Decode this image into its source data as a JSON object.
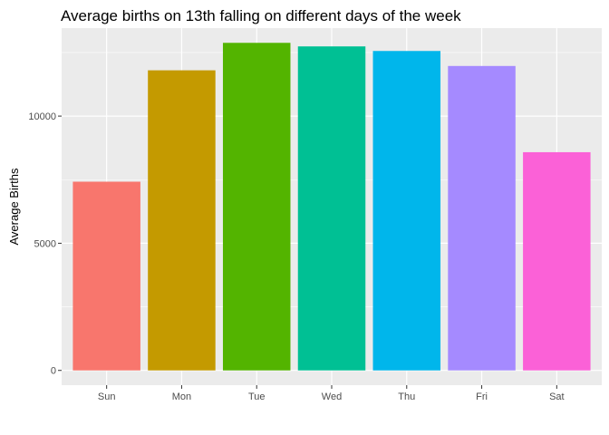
{
  "chart_data": {
    "type": "bar",
    "title": "Average births on 13th falling on different days of the week",
    "xlabel": "",
    "ylabel": "Average Births",
    "categories": [
      "Sun",
      "Mon",
      "Tue",
      "Wed",
      "Thu",
      "Fri",
      "Sat"
    ],
    "values": [
      7420,
      11800,
      12880,
      12740,
      12560,
      11970,
      8580
    ],
    "colors": [
      "#F8766D",
      "#C49A00",
      "#53B400",
      "#00C094",
      "#00B6EB",
      "#A58AFF",
      "#FB61D7"
    ],
    "yticks": [
      0,
      5000,
      10000
    ],
    "ytick_labels": [
      "0",
      "5000",
      "10000"
    ],
    "ylim": [
      -580,
      13460
    ],
    "grid": true,
    "panel_background": "#EBEBEB",
    "legend": "none"
  }
}
